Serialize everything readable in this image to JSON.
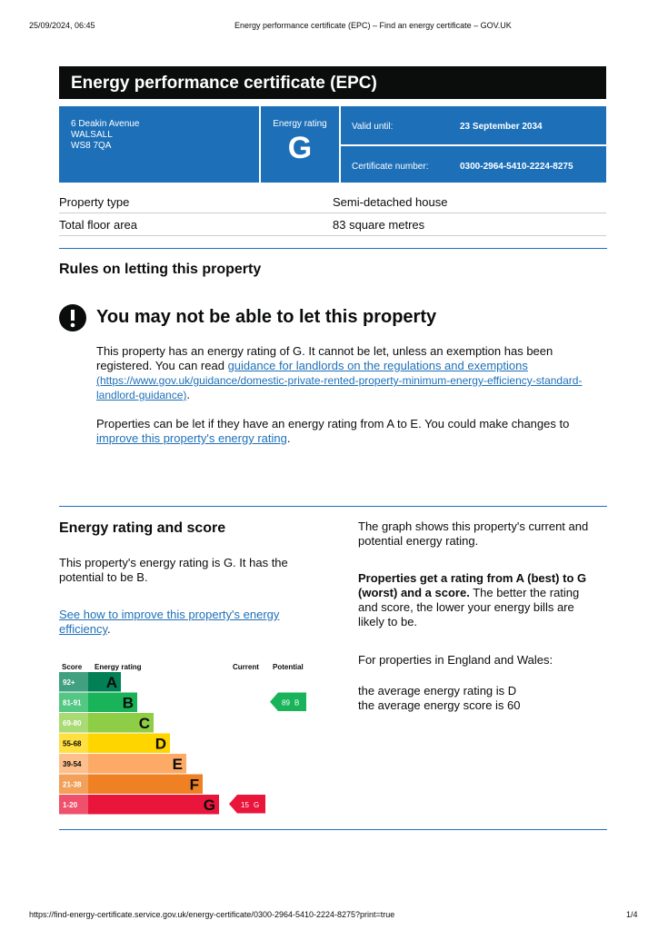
{
  "browser_header": {
    "timestamp": "25/09/2024, 06:45",
    "page_title": "Energy performance certificate (EPC) – Find an energy certificate – GOV.UK"
  },
  "banner": {
    "title": "Energy performance certificate (EPC)"
  },
  "summary": {
    "address": [
      "6 Deakin Avenue",
      "WALSALL",
      "WS8 7QA"
    ],
    "rating_label": "Energy rating",
    "rating": "G",
    "valid_until_label": "Valid until:",
    "valid_until": "23 September 2034",
    "certificate_label": "Certificate number:",
    "certificate_number": "0300-2964-5410-2224-8275"
  },
  "property": [
    [
      "Property type",
      "Semi-detached house"
    ],
    [
      "Total floor area",
      "83 square metres"
    ]
  ],
  "letting": {
    "heading": "Rules on letting this property",
    "warning": "You may not be able to let this property",
    "paragraph1": {
      "text": "This property has an energy rating of G. It cannot be let, unless an exemption has been registered. You can read ",
      "link": "guidance for landlords on the regulations and exemptions",
      "url": " (https://www.gov.uk/guidance/domestic-private-rented-property-minimum-energy-efficiency-standard-landlord-guidance)",
      "end": "."
    },
    "paragraph2": {
      "text": "Properties can be let if they have an energy rating from A to E. You could make changes to ",
      "link": "improve this property's energy rating",
      "end": "."
    }
  },
  "energy": {
    "heading": "Energy rating and score",
    "paragraph": "This property's energy rating is G. It has the potential to be B.",
    "link": "See how to improve this property's energy efficiency",
    "link_end": ".",
    "graph_note": "The graph shows this property's current and potential energy rating.",
    "bold": "Properties get a rating from A (best) to G (worst) and a score.",
    "rest": " The better the rating and score, the lower your energy bills are likely to be.",
    "region": "For properties in England and Wales:",
    "average_rating": "the average energy rating is D",
    "average_score": "the average energy score is 60"
  },
  "chart": {
    "headers": [
      "Score",
      "Energy rating",
      "Current",
      "Potential"
    ],
    "bands": [
      {
        "range": "92+",
        "letter": "A",
        "color": "#008054"
      },
      {
        "range": "81-91",
        "letter": "B",
        "color": "#19b459"
      },
      {
        "range": "69-80",
        "letter": "C",
        "color": "#8dce46"
      },
      {
        "range": "55-68",
        "letter": "D",
        "color": "#ffd500"
      },
      {
        "range": "39-54",
        "letter": "E",
        "color": "#fcaa65"
      },
      {
        "range": "21-38",
        "letter": "F",
        "color": "#ef8023"
      },
      {
        "range": "1-20",
        "letter": "G",
        "color": "#e9153b"
      }
    ],
    "current": {
      "score": "15",
      "letter": "G"
    },
    "potential": {
      "score": "89",
      "letter": "B"
    }
  },
  "footer": {
    "url": "https://find-energy-certificate.service.gov.uk/energy-certificate/0300-2964-5410-2224-8275?print=true",
    "page": "1/4"
  }
}
